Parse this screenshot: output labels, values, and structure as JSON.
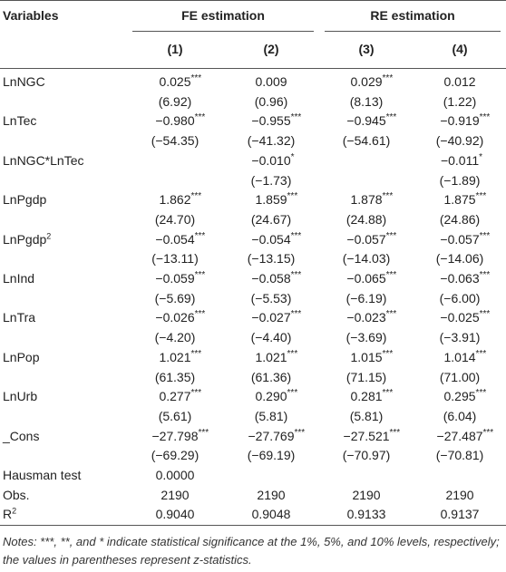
{
  "header": {
    "variables": "Variables",
    "groups": [
      "FE estimation",
      "RE estimation"
    ],
    "columns": [
      "(1)",
      "(2)",
      "(3)",
      "(4)"
    ]
  },
  "rows": [
    {
      "name": "LnNGC",
      "coef": [
        {
          "value": "0.025",
          "stars": "***"
        },
        {
          "value": "0.009"
        },
        {
          "value": "0.029",
          "stars": "***"
        },
        {
          "value": "0.012"
        }
      ],
      "stat": [
        "(6.92)",
        "(0.96)",
        "(8.13)",
        "(1.22)"
      ]
    },
    {
      "name": "LnTec",
      "coef": [
        {
          "value": "−0.980",
          "stars": "***"
        },
        {
          "value": "−0.955",
          "stars": "***"
        },
        {
          "value": "−0.945",
          "stars": "***"
        },
        {
          "value": "−0.919",
          "stars": "***"
        }
      ],
      "stat": [
        "(−54.35)",
        "(−41.32)",
        "(−54.61)",
        "(−40.92)"
      ]
    },
    {
      "name": "LnNGC*LnTec",
      "coef": [
        null,
        {
          "value": "−0.010",
          "stars": "*"
        },
        null,
        {
          "value": "−0.011",
          "stars": "*"
        }
      ],
      "stat": [
        null,
        "(−1.73)",
        null,
        "(−1.89)"
      ]
    },
    {
      "name": "LnPgdp",
      "coef": [
        {
          "value": "1.862",
          "stars": "***"
        },
        {
          "value": "1.859",
          "stars": "***"
        },
        {
          "value": "1.878",
          "stars": "***"
        },
        {
          "value": "1.875",
          "stars": "***"
        }
      ],
      "stat": [
        "(24.70)",
        "(24.67)",
        "(24.88)",
        "(24.86)"
      ]
    },
    {
      "name": "LnPgdp",
      "name_sup": "2",
      "coef": [
        {
          "value": "−0.054",
          "stars": "***"
        },
        {
          "value": "−0.054",
          "stars": "***"
        },
        {
          "value": "−0.057",
          "stars": "***"
        },
        {
          "value": "−0.057",
          "stars": "***"
        }
      ],
      "stat": [
        "(−13.11)",
        "(−13.15)",
        "(−14.03)",
        "(−14.06)"
      ]
    },
    {
      "name": "LnInd",
      "coef": [
        {
          "value": "−0.059",
          "stars": "***"
        },
        {
          "value": "−0.058",
          "stars": "***"
        },
        {
          "value": "−0.065",
          "stars": "***"
        },
        {
          "value": "−0.063",
          "stars": "***"
        }
      ],
      "stat": [
        "(−5.69)",
        "(−5.53)",
        "(−6.19)",
        "(−6.00)"
      ]
    },
    {
      "name": "LnTra",
      "coef": [
        {
          "value": "−0.026",
          "stars": "***"
        },
        {
          "value": "−0.027",
          "stars": "***"
        },
        {
          "value": "−0.023",
          "stars": "***"
        },
        {
          "value": "−0.025",
          "stars": "***"
        }
      ],
      "stat": [
        "(−4.20)",
        "(−4.40)",
        "(−3.69)",
        "(−3.91)"
      ]
    },
    {
      "name": "LnPop",
      "coef": [
        {
          "value": "1.021",
          "stars": "***"
        },
        {
          "value": "1.021",
          "stars": "***"
        },
        {
          "value": "1.015",
          "stars": "***"
        },
        {
          "value": "1.014",
          "stars": "***"
        }
      ],
      "stat": [
        "(61.35)",
        "(61.36)",
        "(71.15)",
        "(71.00)"
      ]
    },
    {
      "name": "LnUrb",
      "coef": [
        {
          "value": "0.277",
          "stars": "***"
        },
        {
          "value": "0.290",
          "stars": "***"
        },
        {
          "value": "0.281",
          "stars": "***"
        },
        {
          "value": "0.295",
          "stars": "***"
        }
      ],
      "stat": [
        "(5.61)",
        "(5.81)",
        "(5.81)",
        "(6.04)"
      ]
    },
    {
      "name": "_Cons",
      "coef": [
        {
          "value": "−27.798",
          "stars": "***"
        },
        {
          "value": "−27.769",
          "stars": "***"
        },
        {
          "value": "−27.521",
          "stars": "***"
        },
        {
          "value": "−27.487",
          "stars": "***"
        }
      ],
      "stat": [
        "(−69.29)",
        "(−69.19)",
        "(−70.97)",
        "(−70.81)"
      ]
    },
    {
      "name": "Hausman test",
      "coef": [
        {
          "value": "0.0000"
        },
        null,
        null,
        null
      ]
    },
    {
      "name": "Obs.",
      "coef": [
        {
          "value": "2190"
        },
        {
          "value": "2190"
        },
        {
          "value": "2190"
        },
        {
          "value": "2190"
        }
      ]
    },
    {
      "name": "R",
      "name_sup": "2",
      "coef": [
        {
          "value": "0.9040"
        },
        {
          "value": "0.9048"
        },
        {
          "value": "0.9133"
        },
        {
          "value": "0.9137"
        }
      ]
    }
  ],
  "notes": "Notes: ***, **, and * indicate statistical significance at the 1%, 5%, and 10% levels, respectively; the values in parentheses represent z-statistics."
}
